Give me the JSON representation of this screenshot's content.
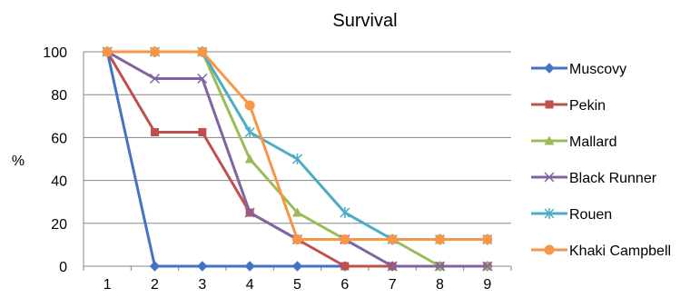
{
  "chart_data": {
    "type": "line",
    "title": "Survival",
    "xlabel": "",
    "ylabel": "%",
    "categories": [
      "1",
      "2",
      "3",
      "4",
      "5",
      "6",
      "7",
      "8",
      "9"
    ],
    "ylim": [
      0,
      100
    ],
    "yticks": [
      "0",
      "20",
      "40",
      "60",
      "80",
      "100"
    ],
    "grid": true,
    "legend_position": "right",
    "series": [
      {
        "name": "Muscovy",
        "color": "#4472C4",
        "marker": "diamond",
        "values": [
          100,
          0,
          0,
          0,
          0,
          0,
          0,
          0,
          0
        ]
      },
      {
        "name": "Pekin",
        "color": "#C0504D",
        "marker": "square",
        "values": [
          100,
          62.5,
          62.5,
          25,
          12.5,
          0,
          0,
          0,
          0
        ]
      },
      {
        "name": "Mallard",
        "color": "#9BBB59",
        "marker": "triangle",
        "values": [
          100,
          100,
          100,
          50,
          25,
          12.5,
          12.5,
          0,
          0
        ]
      },
      {
        "name": "Black Runner",
        "color": "#8064A2",
        "marker": "x",
        "values": [
          100,
          87.5,
          87.5,
          25,
          12.5,
          12.5,
          0,
          0,
          0
        ]
      },
      {
        "name": "Rouen",
        "color": "#4BACC6",
        "marker": "star",
        "values": [
          100,
          100,
          100,
          62.5,
          50,
          25,
          12.5,
          12.5,
          12.5
        ]
      },
      {
        "name": "Khaki Campbell",
        "color": "#F79646",
        "marker": "circle",
        "values": [
          100,
          100,
          100,
          75,
          12.5,
          12.5,
          12.5,
          12.5,
          12.5
        ]
      }
    ]
  }
}
